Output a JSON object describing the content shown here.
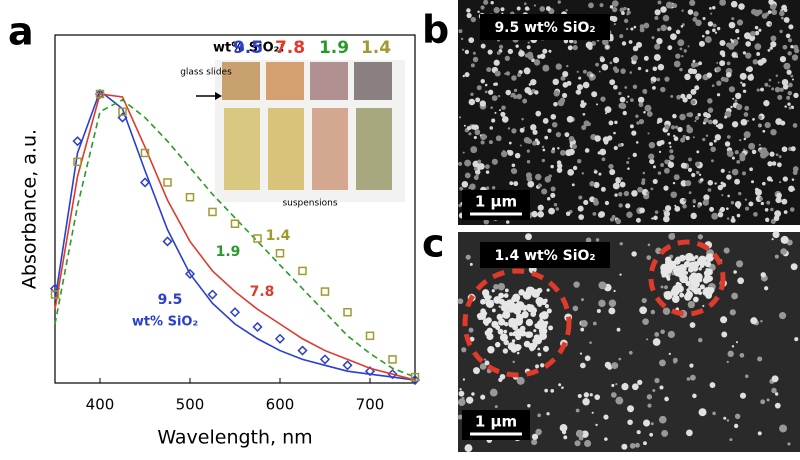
{
  "chart_data": {
    "type": "line",
    "panel_labels": [
      "a",
      "b",
      "c"
    ],
    "x_label": "Wavelength, nm",
    "y_label": "Absorbance, a.u.",
    "x": [
      350,
      375,
      400,
      425,
      450,
      475,
      500,
      525,
      550,
      575,
      600,
      625,
      650,
      675,
      700,
      725,
      750
    ],
    "xlim": [
      350,
      750
    ],
    "ylim": [
      0,
      1.18
    ],
    "xticks": [
      400,
      500,
      600,
      700
    ],
    "series": [
      {
        "name": "9.5",
        "color": "#2a3fd0",
        "style": "line",
        "values": [
          0.28,
          0.78,
          0.99,
          0.93,
          0.72,
          0.52,
          0.37,
          0.27,
          0.2,
          0.15,
          0.11,
          0.08,
          0.06,
          0.04,
          0.03,
          0.02,
          0.01
        ]
      },
      {
        "color": "#2a3fd0",
        "style": "diamonds",
        "values": [
          0.32,
          0.82,
          0.98,
          0.9,
          0.68,
          0.48,
          0.37,
          0.3,
          0.24,
          0.19,
          0.15,
          0.11,
          0.08,
          0.06,
          0.04,
          0.03,
          0.01
        ]
      },
      {
        "name": "7.8",
        "color": "#e03a2a",
        "style": "line",
        "values": [
          0.25,
          0.7,
          0.98,
          0.97,
          0.8,
          0.62,
          0.48,
          0.38,
          0.31,
          0.25,
          0.2,
          0.15,
          0.11,
          0.08,
          0.05,
          0.03,
          0.01
        ]
      },
      {
        "name": "1.9",
        "color": "#2a9a2a",
        "style": "dashed",
        "values": [
          0.2,
          0.6,
          0.92,
          0.96,
          0.9,
          0.82,
          0.73,
          0.64,
          0.56,
          0.48,
          0.4,
          0.32,
          0.24,
          0.16,
          0.1,
          0.05,
          0.02
        ]
      },
      {
        "name": "1.4",
        "color": "#a09a30",
        "style": "squares",
        "values": [
          0.3,
          0.75,
          0.98,
          0.92,
          0.78,
          0.68,
          0.63,
          0.58,
          0.54,
          0.49,
          0.44,
          0.38,
          0.31,
          0.24,
          0.16,
          0.08,
          0.02
        ]
      }
    ],
    "annotation": "wt% SiO₂",
    "inset": {
      "title": "wt% SiO₂:",
      "slides_label": "glass slides",
      "suspensions_label": "suspensions"
    },
    "sem_images": [
      {
        "label": "9.5 wt% SiO₂",
        "scale_bar": "1 µm"
      },
      {
        "label": "1.4 wt% SiO₂",
        "scale_bar": "1 µm"
      }
    ]
  }
}
